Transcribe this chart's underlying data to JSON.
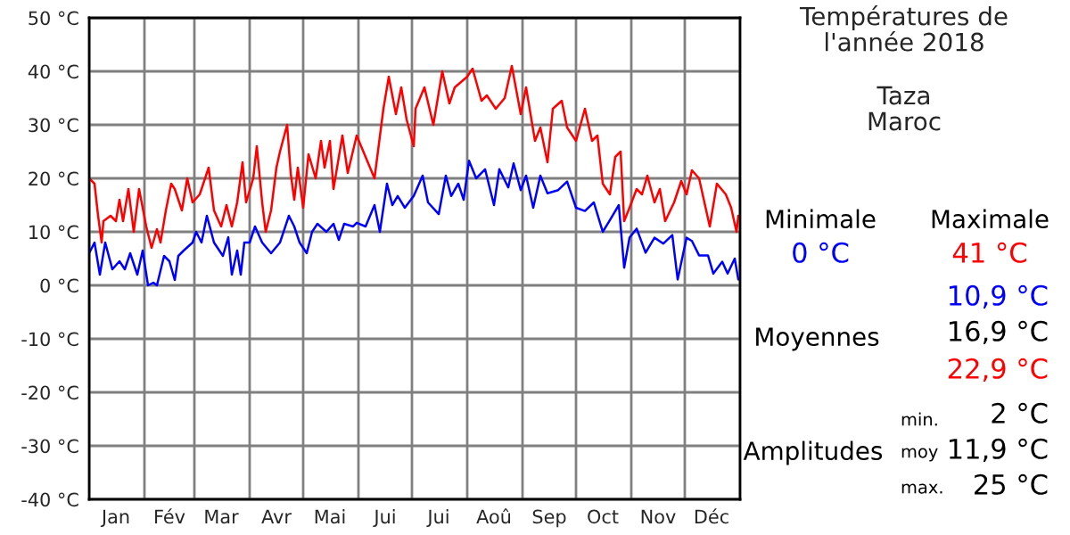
{
  "chart_data": {
    "type": "line",
    "title": "Températures de\nl'année 2018",
    "subtitle": "Taza\nMaroc",
    "xlim": [
      "2018-01-01",
      "2019-01-01"
    ],
    "xticks": [
      {
        "value": "2018-01-01",
        "label": null
      },
      {
        "value": "2018-02-01",
        "label": null
      },
      {
        "value": "2018-03-01",
        "label": null
      },
      {
        "value": "2018-04-01",
        "label": null
      },
      {
        "value": "2018-05-01",
        "label": null
      },
      {
        "value": "2018-06-01",
        "label": null
      },
      {
        "value": "2018-07-01",
        "label": null
      },
      {
        "value": "2018-08-01",
        "label": null
      },
      {
        "value": "2018-09-01",
        "label": null
      },
      {
        "value": "2018-10-01",
        "label": null
      },
      {
        "value": "2018-11-01",
        "label": null
      },
      {
        "value": "2018-12-01",
        "label": null
      },
      {
        "value": "2019-01-01",
        "label": null
      },
      {
        "value": "2018-01-16",
        "label": "Jan"
      },
      {
        "value": "2018-02-15",
        "label": "Fév"
      },
      {
        "value": "2018-03-16",
        "label": "Mar"
      },
      {
        "value": "2018-04-16",
        "label": "Avr"
      },
      {
        "value": "2018-05-16",
        "label": "Mai"
      },
      {
        "value": "2018-06-16",
        "label": "Jui"
      },
      {
        "value": "2018-07-16",
        "label": "Jui"
      },
      {
        "value": "2018-08-16",
        "label": "Aoû"
      },
      {
        "value": "2018-09-16",
        "label": "Sep"
      },
      {
        "value": "2018-10-16",
        "label": "Oct"
      },
      {
        "value": "2018-11-16",
        "label": "Nov"
      },
      {
        "value": "2018-12-16",
        "label": "Déc"
      }
    ],
    "ylim": [
      -40,
      50
    ],
    "yticks": [
      {
        "value": -40,
        "label": "-40 °C"
      },
      {
        "value": -30,
        "label": "-30 °C"
      },
      {
        "value": -20,
        "label": "-20 °C"
      },
      {
        "value": -10,
        "label": "-10 °C"
      },
      {
        "value": 0,
        "label": "0 °C"
      },
      {
        "value": 10,
        "label": "10 °C"
      },
      {
        "value": 20,
        "label": "20 °C"
      },
      {
        "value": 30,
        "label": "30 °C"
      },
      {
        "value": 40,
        "label": "40 °C"
      },
      {
        "value": 50,
        "label": "50 °C"
      }
    ],
    "grid": true,
    "legend": false,
    "marker": "none",
    "line_style": "solid",
    "series": [
      {
        "color": "#0000ff",
        "x": [
          "2018-01-01",
          "2018-01-04",
          "2018-01-07",
          "2018-01-10",
          "2018-01-14",
          "2018-01-18",
          "2018-01-21",
          "2018-01-24",
          "2018-01-28",
          "2018-01-31",
          "2018-02-03",
          "2018-02-06",
          "2018-02-08",
          "2018-02-12",
          "2018-02-15",
          "2018-02-18",
          "2018-02-20",
          "2018-02-23",
          "2018-02-28",
          "2018-03-02",
          "2018-03-05",
          "2018-03-08",
          "2018-03-12",
          "2018-03-17",
          "2018-03-20",
          "2018-03-22",
          "2018-03-25",
          "2018-03-27",
          "2018-03-29",
          "2018-04-01",
          "2018-04-04",
          "2018-04-08",
          "2018-04-13",
          "2018-04-18",
          "2018-04-23",
          "2018-04-26",
          "2018-04-29",
          "2018-05-03",
          "2018-05-06",
          "2018-05-09",
          "2018-05-14",
          "2018-05-18",
          "2018-05-21",
          "2018-05-24",
          "2018-05-29",
          "2018-05-31",
          "2018-06-05",
          "2018-06-10",
          "2018-06-13",
          "2018-06-17",
          "2018-06-20",
          "2018-06-23",
          "2018-06-27",
          "2018-07-02",
          "2018-07-07",
          "2018-07-10",
          "2018-07-16",
          "2018-07-20",
          "2018-07-23",
          "2018-07-27",
          "2018-07-30",
          "2018-08-02",
          "2018-08-06",
          "2018-08-11",
          "2018-08-16",
          "2018-08-19",
          "2018-08-24",
          "2018-08-27",
          "2018-08-31",
          "2018-09-03",
          "2018-09-07",
          "2018-09-11",
          "2018-09-15",
          "2018-09-21",
          "2018-09-26",
          "2018-10-01",
          "2018-10-06",
          "2018-10-11",
          "2018-10-16",
          "2018-10-20",
          "2018-10-25",
          "2018-10-28",
          "2018-10-31",
          "2018-11-04",
          "2018-11-09",
          "2018-11-14",
          "2018-11-19",
          "2018-11-24",
          "2018-11-27",
          "2018-12-02",
          "2018-12-05",
          "2018-12-09",
          "2018-12-14",
          "2018-12-17",
          "2018-12-22",
          "2018-12-25",
          "2018-12-29",
          "2018-12-31"
        ],
        "values": [
          6,
          8,
          2,
          8,
          3,
          4.5,
          3,
          6,
          2,
          6.5,
          0,
          0.5,
          0,
          5.5,
          4.5,
          1,
          5.5,
          6.5,
          8,
          10,
          8,
          13,
          8,
          5.5,
          9,
          2,
          6.5,
          2,
          8,
          8,
          11,
          8,
          6,
          8,
          13,
          11,
          8,
          6,
          10,
          11.5,
          10,
          11.5,
          8.5,
          11.5,
          11,
          11.7,
          11,
          15,
          10,
          19,
          15,
          16.7,
          14.5,
          16.7,
          20.5,
          15.5,
          13.3,
          20.5,
          16.7,
          19,
          16,
          23.3,
          20,
          21.7,
          15,
          21.7,
          18.3,
          22.8,
          17.8,
          20.5,
          14.5,
          20.5,
          17.2,
          17.8,
          19.4,
          14.5,
          13.9,
          15.5,
          10,
          12.2,
          15,
          3.3,
          8.9,
          10.6,
          6.1,
          8.9,
          7.8,
          9.4,
          1.1,
          8.9,
          8.3,
          5.6,
          5.6,
          2.2,
          4.4,
          2.2,
          5,
          1.1
        ]
      },
      {
        "color": "#ff0000",
        "x": [
          "2018-01-01",
          "2018-01-04",
          "2018-01-06",
          "2018-01-08",
          "2018-01-09",
          "2018-01-13",
          "2018-01-16",
          "2018-01-18",
          "2018-01-20",
          "2018-01-23",
          "2018-01-26",
          "2018-01-29",
          "2018-02-02",
          "2018-02-05",
          "2018-02-08",
          "2018-02-10",
          "2018-02-13",
          "2018-02-16",
          "2018-02-18",
          "2018-02-22",
          "2018-02-25",
          "2018-02-28",
          "2018-03-04",
          "2018-03-09",
          "2018-03-12",
          "2018-03-16",
          "2018-03-19",
          "2018-03-22",
          "2018-03-25",
          "2018-03-28",
          "2018-03-30",
          "2018-04-03",
          "2018-04-05",
          "2018-04-08",
          "2018-04-10",
          "2018-04-13",
          "2018-04-16",
          "2018-04-18",
          "2018-04-22",
          "2018-04-24",
          "2018-04-26",
          "2018-04-28",
          "2018-05-01",
          "2018-05-04",
          "2018-05-08",
          "2018-05-11",
          "2018-05-13",
          "2018-05-16",
          "2018-05-18",
          "2018-05-23",
          "2018-05-26",
          "2018-05-31",
          "2018-06-10",
          "2018-06-15",
          "2018-06-18",
          "2018-06-22",
          "2018-06-25",
          "2018-06-28",
          "2018-07-02",
          "2018-07-03",
          "2018-07-08",
          "2018-07-13",
          "2018-07-18",
          "2018-07-22",
          "2018-07-25",
          "2018-08-01",
          "2018-08-04",
          "2018-08-09",
          "2018-08-12",
          "2018-08-17",
          "2018-08-22",
          "2018-08-26",
          "2018-08-31",
          "2018-09-03",
          "2018-09-08",
          "2018-09-11",
          "2018-09-15",
          "2018-09-18",
          "2018-09-23",
          "2018-09-26",
          "2018-10-01",
          "2018-10-06",
          "2018-10-10",
          "2018-10-13",
          "2018-10-16",
          "2018-10-20",
          "2018-10-23",
          "2018-10-26",
          "2018-10-28",
          "2018-10-31",
          "2018-11-04",
          "2018-11-07",
          "2018-11-10",
          "2018-11-14",
          "2018-11-17",
          "2018-11-20",
          "2018-11-25",
          "2018-11-29",
          "2018-12-02",
          "2018-12-05",
          "2018-12-09",
          "2018-12-12",
          "2018-12-15",
          "2018-12-19",
          "2018-12-24",
          "2018-12-27",
          "2018-12-30",
          "2018-12-31"
        ],
        "values": [
          20,
          19,
          13,
          8,
          12,
          13,
          12,
          16,
          12,
          18,
          10,
          18,
          11,
          7,
          10.5,
          8,
          14,
          19,
          18,
          14,
          20,
          15.5,
          17,
          22,
          14,
          11,
          15,
          11,
          15.5,
          23,
          15.5,
          20,
          26,
          15.5,
          10,
          14,
          22,
          25,
          30,
          21,
          16,
          22,
          14.5,
          24.5,
          20,
          27,
          22,
          27,
          18,
          28,
          21,
          28,
          20,
          33,
          39,
          32,
          37,
          31,
          26,
          33,
          37,
          30,
          40,
          34,
          37,
          39,
          40.5,
          34.5,
          35.5,
          33,
          35,
          41,
          32,
          37,
          27,
          29.5,
          23,
          33,
          34.5,
          29.5,
          27,
          33,
          27,
          28,
          19,
          17,
          24,
          25,
          12,
          14.5,
          18,
          17,
          20.5,
          15.5,
          18,
          12,
          15.5,
          19.5,
          17,
          21.5,
          20,
          15.5,
          11,
          19,
          17,
          14.5,
          10,
          13
        ]
      }
    ],
    "annotations": [
      "Minimale",
      "Maximale",
      "0 °C",
      "41 °C",
      "10,9 °C",
      "Moyennes",
      "16,9 °C",
      "22,9 °C",
      "min.",
      "2 °C",
      "Amplitudes",
      "moy",
      "11,9 °C",
      "max.",
      "25 °C"
    ]
  }
}
